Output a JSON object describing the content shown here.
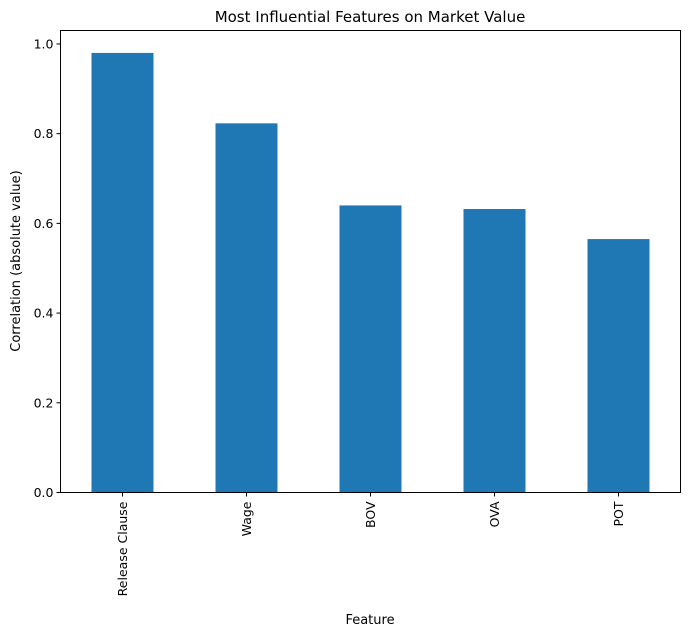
{
  "chart_data": {
    "type": "bar",
    "title": "Most Influential Features on Market Value",
    "xlabel": "Feature",
    "ylabel": "Correlation (absolute value)",
    "categories": [
      "Release Clause",
      "Wage",
      "BOV",
      "OVA",
      "POT"
    ],
    "values": [
      0.98,
      0.823,
      0.64,
      0.632,
      0.565
    ],
    "ylim": [
      0,
      1.03
    ],
    "yticks": [
      0.0,
      0.2,
      0.4,
      0.6,
      0.8,
      1.0
    ],
    "ytick_labels": [
      "0.0",
      "0.2",
      "0.4",
      "0.6",
      "0.8",
      "1.0"
    ],
    "bar_color": "#1f77b4",
    "grid": false,
    "legend": "none"
  }
}
